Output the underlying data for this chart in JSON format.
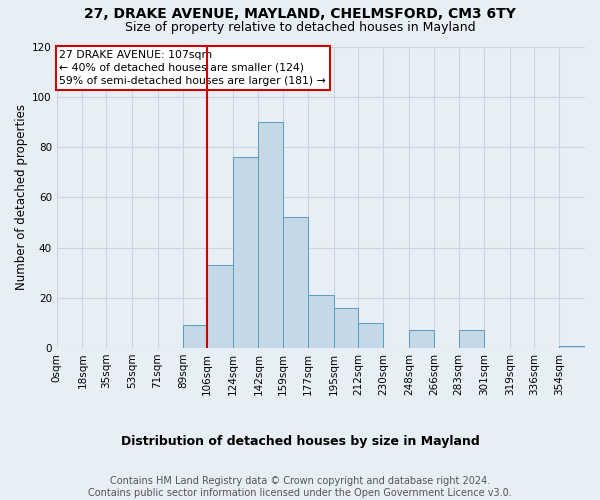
{
  "title1": "27, DRAKE AVENUE, MAYLAND, CHELMSFORD, CM3 6TY",
  "title2": "Size of property relative to detached houses in Mayland",
  "xlabel": "Distribution of detached houses by size in Mayland",
  "ylabel": "Number of detached properties",
  "footer1": "Contains HM Land Registry data © Crown copyright and database right 2024.",
  "footer2": "Contains public sector information licensed under the Open Government Licence v3.0.",
  "annotation_line1": "27 DRAKE AVENUE: 107sqm",
  "annotation_line2": "← 40% of detached houses are smaller (124)",
  "annotation_line3": "59% of semi-detached houses are larger (181) →",
  "bar_color": "#c5d8e8",
  "bar_edge_color": "#5a9cbd",
  "vline_color": "#cc0000",
  "vline_x": 106,
  "bin_edges": [
    0,
    18,
    35,
    53,
    71,
    89,
    106,
    124,
    142,
    159,
    177,
    195,
    212,
    230,
    248,
    266,
    283,
    301,
    319,
    336,
    354,
    372
  ],
  "values": [
    0,
    0,
    0,
    0,
    0,
    9,
    33,
    76,
    90,
    52,
    21,
    16,
    10,
    0,
    7,
    0,
    7,
    0,
    0,
    0,
    1
  ],
  "tick_positions": [
    0,
    18,
    35,
    53,
    71,
    89,
    106,
    124,
    142,
    159,
    177,
    195,
    212,
    230,
    248,
    266,
    283,
    301,
    319,
    336,
    354
  ],
  "tick_labels": [
    "0sqm",
    "18sqm",
    "35sqm",
    "53sqm",
    "71sqm",
    "89sqm",
    "106sqm",
    "124sqm",
    "142sqm",
    "159sqm",
    "177sqm",
    "195sqm",
    "212sqm",
    "230sqm",
    "248sqm",
    "266sqm",
    "283sqm",
    "301sqm",
    "319sqm",
    "336sqm",
    "354sqm"
  ],
  "xlim": [
    0,
    372
  ],
  "ylim": [
    0,
    120
  ],
  "yticks": [
    0,
    20,
    40,
    60,
    80,
    100,
    120
  ],
  "grid_color": "#ccd4e0",
  "background_color": "#e8eef5",
  "annotation_box_color": "#cc0000",
  "title_fontsize": 10,
  "subtitle_fontsize": 9,
  "ylabel_fontsize": 8.5,
  "xlabel_fontsize": 9,
  "tick_fontsize": 7.5,
  "footer_fontsize": 7
}
